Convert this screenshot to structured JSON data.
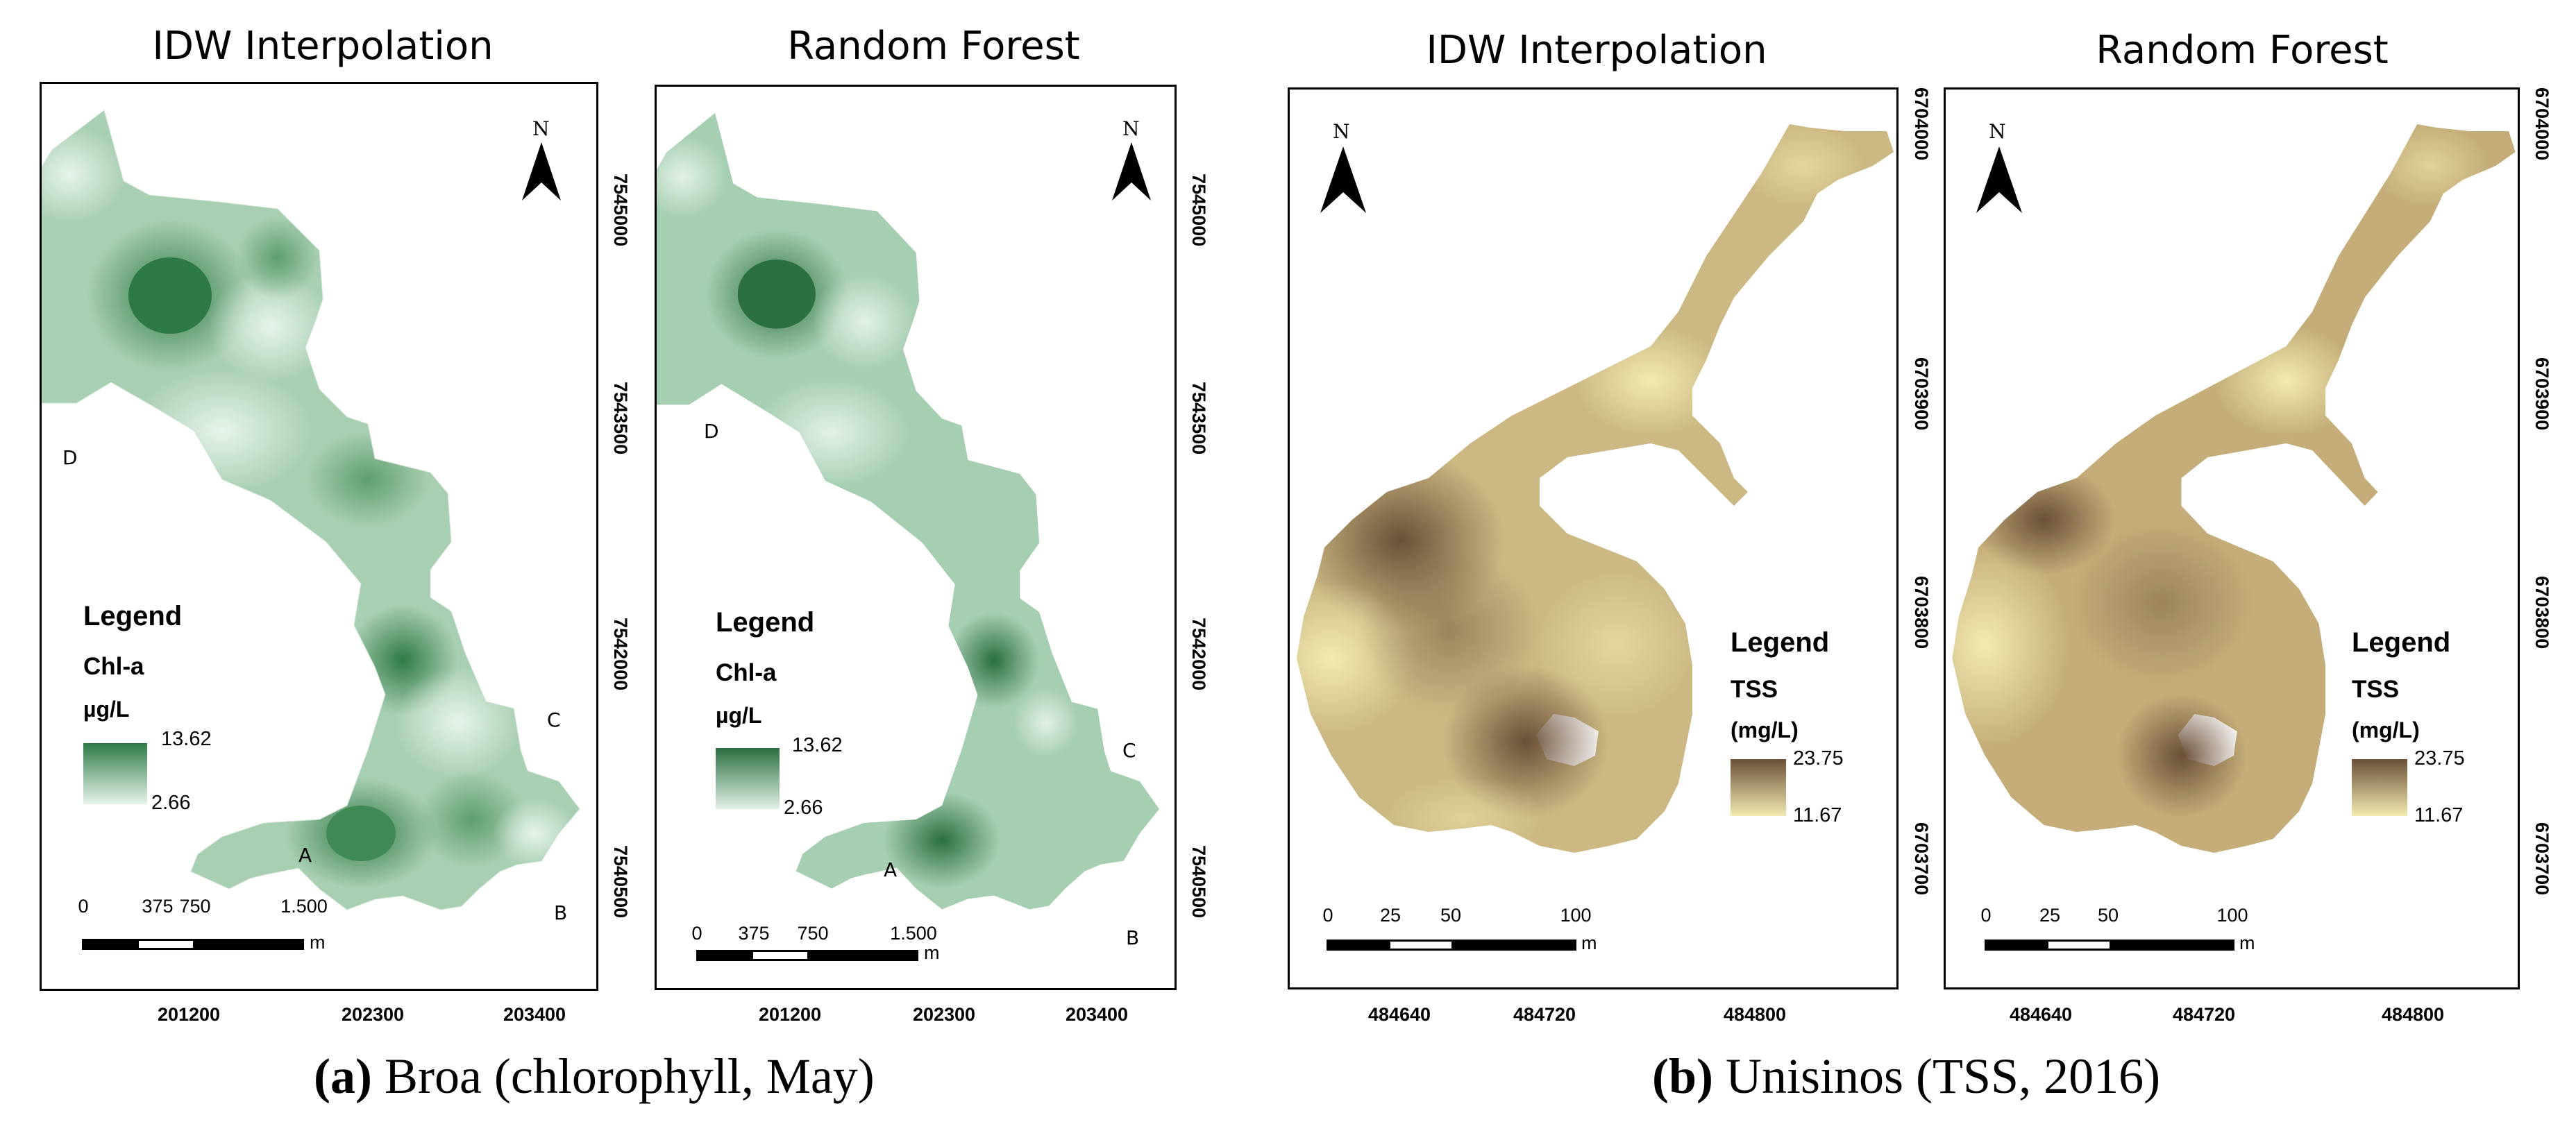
{
  "panels": [
    {
      "id": "a-idw",
      "title": "IDW Interpolation",
      "legend": {
        "title": "Legend",
        "variable": "Chl-a",
        "unit": "µg/L",
        "max": "13.62",
        "min": "2.66"
      },
      "points": [
        "D",
        "C",
        "A",
        "B"
      ],
      "scale": {
        "labels": [
          "0",
          "375",
          "750",
          "1.500"
        ],
        "unit": "m"
      }
    },
    {
      "id": "a-rf",
      "title": "Random Forest",
      "legend": {
        "title": "Legend",
        "variable": "Chl-a",
        "unit": "µg/L",
        "max": "13.62",
        "min": "2.66"
      },
      "points": [
        "D",
        "C",
        "A",
        "B"
      ],
      "scale": {
        "labels": [
          "0",
          "375",
          "750",
          "1.500"
        ],
        "unit": "m"
      }
    },
    {
      "id": "b-idw",
      "title": "IDW Interpolation",
      "legend": {
        "title": "Legend",
        "variable": "TSS",
        "unit": "(mg/L)",
        "max": "23.75",
        "min": "11.67"
      },
      "scale": {
        "labels": [
          "0",
          "25",
          "50",
          "100"
        ],
        "unit": "m"
      }
    },
    {
      "id": "b-rf",
      "title": "Random Forest",
      "legend": {
        "title": "Legend",
        "variable": "TSS",
        "unit": "(mg/L)",
        "max": "23.75",
        "min": "11.67"
      },
      "scale": {
        "labels": [
          "0",
          "25",
          "50",
          "100"
        ],
        "unit": "m"
      }
    }
  ],
  "north_label": "N",
  "axes": {
    "a_x_ticks": [
      "201200",
      "202300",
      "203400"
    ],
    "a_y_ticks": [
      "7545000",
      "7543500",
      "7542000",
      "7540500"
    ],
    "b_x_ticks": [
      "484640",
      "484720",
      "484800"
    ],
    "b_y_ticks": [
      "6704000",
      "6703900",
      "6703800",
      "6703700"
    ]
  },
  "captions": [
    {
      "letter": "(a)",
      "text": "Broa (chlorophyll, May)"
    },
    {
      "letter": "(b)",
      "text": "Unisinos (TSS, 2016)"
    }
  ],
  "colors": {
    "chl_dark": "#2e7a45",
    "chl_light": "#e6f4ea",
    "tss_dark": "#6b5038",
    "tss_light": "#f2eab0"
  }
}
